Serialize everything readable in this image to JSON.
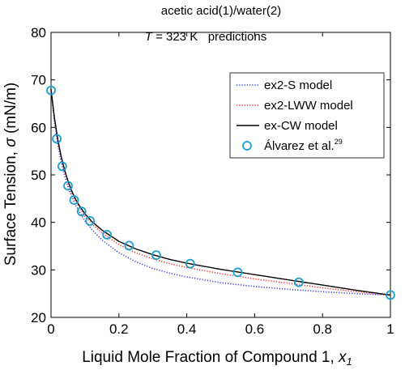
{
  "chart_data": {
    "type": "line",
    "title": "acetic acid(1)/water(2)",
    "subtitle_italic": "T",
    "subtitle_rest": " = 323 K   predictions",
    "xlabel": "Liquid Mole Fraction of Compound 1, ",
    "xlabel_symbol": "x",
    "xlabel_sub": "1",
    "ylabel": "Surface Tension, ",
    "ylabel_symbol": "σ",
    "ylabel_unit": " (mN/m)",
    "xlim": [
      0,
      1
    ],
    "ylim": [
      20,
      80
    ],
    "xticks": [
      0,
      0.2,
      0.4,
      0.6,
      0.8,
      1
    ],
    "xtick_labels": [
      "0",
      "0.2",
      "0.4",
      "0.6",
      "0.8",
      "1"
    ],
    "yticks": [
      20,
      30,
      40,
      50,
      60,
      70,
      80
    ],
    "ytick_labels": [
      "20",
      "30",
      "40",
      "50",
      "60",
      "70",
      "80"
    ],
    "grid": false,
    "legend_position": "top-right",
    "series": [
      {
        "name": "ex2-S model",
        "style": "dotted",
        "color": "#3a3aff",
        "x": [
          0,
          0.01,
          0.02,
          0.03,
          0.04,
          0.05,
          0.06,
          0.07,
          0.08,
          0.1,
          0.12,
          0.15,
          0.2,
          0.25,
          0.3,
          0.35,
          0.4,
          0.5,
          0.6,
          0.7,
          0.8,
          0.9,
          1.0
        ],
        "y": [
          68.0,
          61.2,
          56.4,
          52.7,
          49.8,
          47.5,
          45.6,
          44.0,
          42.6,
          40.3,
          38.5,
          36.3,
          33.6,
          31.7,
          30.3,
          29.3,
          28.5,
          27.3,
          26.5,
          25.9,
          25.4,
          25.0,
          24.7
        ]
      },
      {
        "name": "ex2-LWW model",
        "style": "dotted",
        "color": "#ff3030",
        "x": [
          0,
          0.01,
          0.02,
          0.03,
          0.04,
          0.05,
          0.06,
          0.07,
          0.08,
          0.1,
          0.12,
          0.15,
          0.2,
          0.25,
          0.3,
          0.35,
          0.4,
          0.5,
          0.6,
          0.7,
          0.8,
          0.9,
          1.0
        ],
        "y": [
          68.0,
          61.8,
          57.1,
          53.5,
          50.6,
          48.3,
          46.4,
          44.8,
          43.5,
          41.3,
          39.7,
          37.8,
          35.3,
          33.6,
          32.3,
          31.3,
          30.5,
          29.2,
          28.1,
          27.2,
          26.2,
          25.4,
          24.7
        ]
      },
      {
        "name": "ex-CW model",
        "style": "solid",
        "color": "#000000",
        "x": [
          0,
          0.01,
          0.02,
          0.03,
          0.04,
          0.05,
          0.06,
          0.07,
          0.08,
          0.1,
          0.12,
          0.15,
          0.2,
          0.25,
          0.3,
          0.35,
          0.4,
          0.5,
          0.6,
          0.7,
          0.8,
          0.9,
          1.0
        ],
        "y": [
          68.0,
          62.0,
          57.4,
          53.8,
          51.0,
          48.7,
          46.8,
          45.2,
          43.9,
          41.8,
          40.2,
          38.4,
          36.0,
          34.4,
          33.2,
          32.2,
          31.4,
          30.1,
          29.0,
          27.9,
          26.8,
          25.7,
          24.7
        ]
      }
    ],
    "scatter": {
      "name": "Álvarez et al.",
      "superscript": "29",
      "color": "#1a9fd0",
      "x": [
        0.0,
        0.017,
        0.033,
        0.05,
        0.068,
        0.09,
        0.115,
        0.165,
        0.23,
        0.31,
        0.41,
        0.55,
        0.73,
        1.0
      ],
      "y": [
        67.8,
        57.6,
        51.8,
        47.7,
        44.7,
        42.3,
        40.3,
        37.4,
        35.1,
        33.1,
        31.3,
        29.5,
        27.4,
        24.7
      ]
    }
  }
}
